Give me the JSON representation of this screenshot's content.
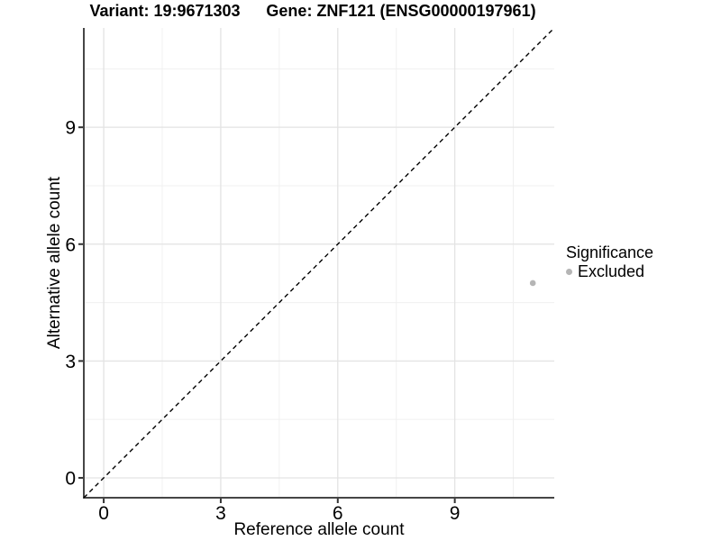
{
  "chart_data": {
    "type": "scatter",
    "title_left": "Variant: 19:9671303",
    "title_right": "Gene: ZNF121 (ENSG00000197961)",
    "xlabel": "Reference allele count",
    "ylabel": "Alternative allele count",
    "xlim": [
      -0.51,
      11.55
    ],
    "ylim": [
      -0.51,
      11.55
    ],
    "x_ticks": [
      0,
      3,
      6,
      9
    ],
    "y_ticks": [
      0,
      3,
      6,
      9
    ],
    "x_minor_ticks": [
      1.5,
      4.5,
      7.5,
      10.5
    ],
    "y_minor_ticks": [
      1.5,
      4.5,
      7.5,
      10.5
    ],
    "grid": "major+minor",
    "reference_line": {
      "kind": "identity y=x",
      "style": "dashed",
      "color": "#000000"
    },
    "series": [
      {
        "name": "Excluded",
        "color": "#b5b5b5",
        "points": [
          {
            "x": 11,
            "y": 5
          }
        ]
      }
    ],
    "legend": {
      "title": "Significance",
      "position": "right",
      "items": [
        {
          "label": "Excluded",
          "color": "#b5b5b5"
        }
      ]
    },
    "colors": {
      "axis_line": "#464646",
      "tick_mark": "#333333",
      "grid_major": "#e3e3e3",
      "grid_minor": "#f0f0f0",
      "point": "#b5b5b5",
      "text": "#000000"
    }
  }
}
